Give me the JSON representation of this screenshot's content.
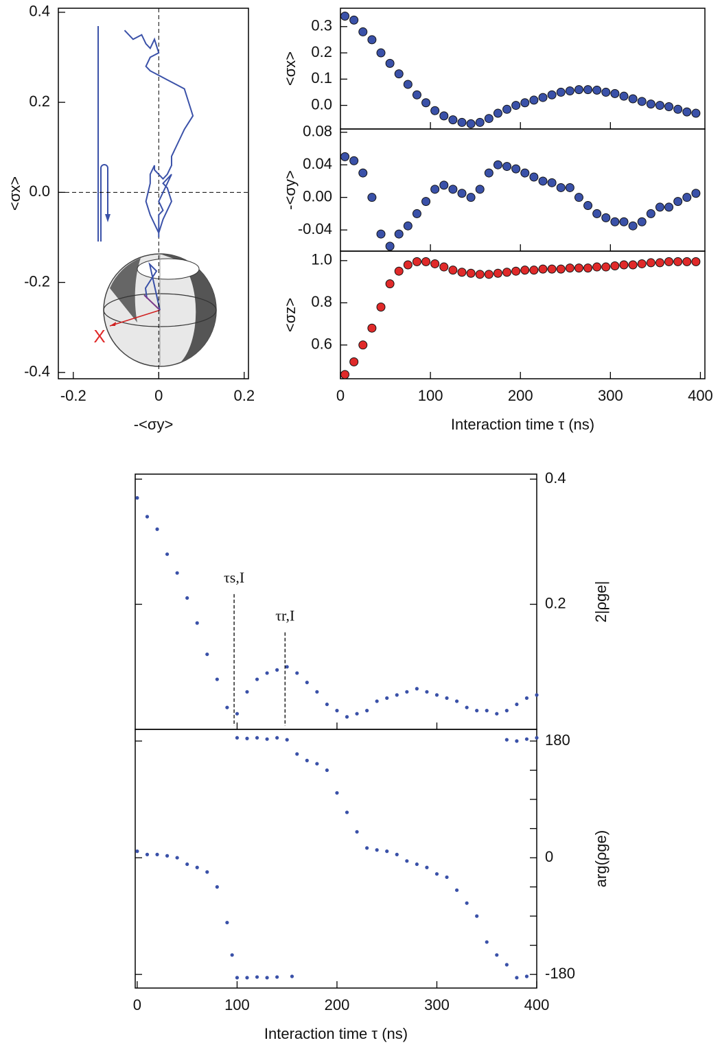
{
  "chart_data": [
    {
      "type": "line",
      "color": "#3a51a8",
      "x": [
        -0.08,
        -0.06,
        -0.04,
        -0.03,
        -0.02,
        -0.01,
        0,
        -0.02,
        -0.03,
        -0.02,
        0,
        0.02,
        0.04,
        0.06,
        0.07,
        0.08,
        0.06,
        0.05,
        0.04,
        0.03,
        0.03,
        0.02,
        0.01,
        -0.01,
        -0.01,
        -0.02,
        -0.02,
        -0.03,
        -0.02,
        -0.01,
        0,
        0.01,
        0.02,
        0.03,
        0.02,
        0.01,
        0.02,
        0.03,
        0.02,
        0.01,
        0,
        0.01,
        0,
        0
      ],
      "values": [
        0.36,
        0.34,
        0.35,
        0.33,
        0.32,
        0.34,
        0.31,
        0.3,
        0.28,
        0.27,
        0.26,
        0.25,
        0.24,
        0.23,
        0.2,
        0.17,
        0.14,
        0.12,
        0.1,
        0.08,
        0.06,
        0.04,
        0.03,
        0.05,
        0.06,
        0.04,
        0.02,
        -0.02,
        -0.05,
        -0.07,
        -0.09,
        -0.06,
        -0.04,
        -0.02,
        0.01,
        0.02,
        0.03,
        0.04,
        0.02,
        0,
        -0.02,
        -0.04,
        -0.05,
        -0.1
      ],
      "xlim": [
        -0.235,
        0.21
      ],
      "ylim": [
        -0.414,
        0.409
      ],
      "xticks": [
        -0.2,
        0,
        0.2
      ],
      "yticks": [
        -0.4,
        -0.2,
        {
          "value": 0,
          "label": "0.0"
        },
        0.2,
        0.4
      ],
      "xlabel": "-<σy>",
      "ylabel": "<σx>",
      "annotation": "X"
    },
    {
      "type": "scatter",
      "color": "#3a51a8",
      "x": [
        5,
        15,
        25,
        35,
        45,
        55,
        65,
        75,
        85,
        95,
        105,
        115,
        125,
        135,
        145,
        155,
        165,
        175,
        185,
        195,
        205,
        215,
        225,
        235,
        245,
        255,
        265,
        275,
        285,
        295,
        305,
        315,
        325,
        335,
        345,
        355,
        365,
        375,
        385,
        395
      ],
      "values": [
        0.34,
        0.325,
        0.28,
        0.25,
        0.2,
        0.16,
        0.12,
        0.08,
        0.04,
        0.01,
        -0.02,
        -0.04,
        -0.055,
        -0.065,
        -0.07,
        -0.065,
        -0.05,
        -0.03,
        -0.015,
        0,
        0.01,
        0.02,
        0.03,
        0.04,
        0.05,
        0.055,
        0.06,
        0.06,
        0.058,
        0.05,
        0.045,
        0.035,
        0.025,
        0.015,
        0.005,
        0,
        -0.005,
        -0.015,
        -0.025,
        -0.03
      ],
      "xlim": [
        0,
        405
      ],
      "ylim": [
        -0.09,
        0.37
      ],
      "xticks": [
        100,
        200,
        300
      ],
      "yticks": [
        {
          "value": 0,
          "label": "0.0"
        },
        0.1,
        0.2,
        0.3
      ],
      "ylabel": "<σx>"
    },
    {
      "type": "scatter",
      "color": "#3a51a8",
      "x": [
        5,
        15,
        25,
        35,
        45,
        55,
        65,
        75,
        85,
        95,
        105,
        115,
        125,
        135,
        145,
        155,
        165,
        175,
        185,
        195,
        205,
        215,
        225,
        235,
        245,
        255,
        265,
        275,
        285,
        295,
        305,
        315,
        325,
        335,
        345,
        355,
        365,
        375,
        385,
        395
      ],
      "values": [
        0.05,
        0.045,
        0.03,
        0,
        -0.045,
        -0.06,
        -0.045,
        -0.035,
        -0.02,
        -0.005,
        0.01,
        0.015,
        0.01,
        0.005,
        0,
        0.01,
        0.03,
        0.04,
        0.038,
        0.035,
        0.03,
        0.025,
        0.02,
        0.018,
        0.012,
        0.012,
        0,
        -0.01,
        -0.02,
        -0.025,
        -0.03,
        -0.03,
        -0.035,
        -0.03,
        -0.02,
        -0.012,
        -0.012,
        -0.005,
        0,
        0.005
      ],
      "xlim": [
        0,
        405
      ],
      "ylim": [
        -0.066,
        0.084
      ],
      "xticks": [
        100,
        200,
        300
      ],
      "yticks": [
        -0.04,
        {
          "value": 0,
          "label": "0.00"
        },
        0.04,
        0.08
      ],
      "ylabel": "-<σy>"
    },
    {
      "type": "scatter",
      "color": "#e02a2a",
      "x": [
        5,
        15,
        25,
        35,
        45,
        55,
        65,
        75,
        85,
        95,
        105,
        115,
        125,
        135,
        145,
        155,
        165,
        175,
        185,
        195,
        205,
        215,
        225,
        235,
        245,
        255,
        265,
        275,
        285,
        295,
        305,
        315,
        325,
        335,
        345,
        355,
        365,
        375,
        385,
        395
      ],
      "values": [
        0.46,
        0.52,
        0.6,
        0.68,
        0.78,
        0.89,
        0.95,
        0.98,
        0.995,
        0.995,
        0.985,
        0.97,
        0.955,
        0.945,
        0.94,
        0.935,
        0.935,
        0.94,
        0.945,
        0.95,
        0.955,
        0.955,
        0.96,
        0.96,
        0.96,
        0.965,
        0.965,
        0.965,
        0.97,
        0.97,
        0.975,
        0.98,
        0.98,
        0.985,
        0.99,
        0.99,
        0.995,
        0.995,
        0.995,
        0.995
      ],
      "xlim": [
        0,
        405
      ],
      "ylim": [
        0.44,
        1.045
      ],
      "xticks": [
        0,
        100,
        200,
        300,
        400
      ],
      "yticks": [
        0.6,
        0.8,
        {
          "value": 1,
          "label": "1.0"
        }
      ],
      "ylabel": "<σz>",
      "xlabel": "Interaction time τ (ns)"
    },
    {
      "type": "scatter",
      "color": "#3a51a8",
      "y_axis_side": "right",
      "x": [
        0,
        10,
        20,
        30,
        40,
        50,
        60,
        70,
        80,
        90,
        100,
        110,
        120,
        130,
        140,
        150,
        160,
        170,
        180,
        190,
        200,
        210,
        220,
        230,
        240,
        250,
        260,
        270,
        280,
        290,
        300,
        310,
        320,
        330,
        340,
        350,
        360,
        370,
        380,
        390,
        400
      ],
      "values": [
        0.37,
        0.34,
        0.32,
        0.28,
        0.25,
        0.21,
        0.17,
        0.12,
        0.08,
        0.035,
        0.025,
        0.06,
        0.08,
        0.09,
        0.095,
        0.1,
        0.09,
        0.075,
        0.06,
        0.04,
        0.03,
        0.02,
        0.025,
        0.03,
        0.045,
        0.05,
        0.055,
        0.06,
        0.065,
        0.06,
        0.055,
        0.05,
        0.045,
        0.035,
        0.03,
        0.03,
        0.025,
        0.03,
        0.04,
        0.05,
        0.055
      ],
      "xlim": [
        -2,
        400
      ],
      "ylim": [
        0,
        0.408
      ],
      "xticks": [
        100,
        200,
        300
      ],
      "yticks": [
        0.2,
        0.4
      ],
      "ylabel": "2|ρge|",
      "annotations": [
        {
          "text": "τs,I",
          "x": 97
        },
        {
          "text": "τr,I",
          "x": 148
        }
      ]
    },
    {
      "type": "scatter",
      "y_axis_side": "right",
      "series": [
        {
          "color": "#3a51a8",
          "x": [
            0,
            10,
            20,
            30,
            40,
            50,
            60,
            70,
            80,
            90,
            95,
            100,
            110,
            120,
            130,
            140,
            155
          ],
          "values": [
            10,
            5,
            5,
            3,
            0,
            -10,
            -15,
            -22,
            -45,
            -100,
            -150,
            -185,
            -185,
            -184,
            -185,
            -184,
            -183
          ]
        },
        {
          "color": "#3a51a8",
          "x": [
            100,
            110,
            120,
            130,
            140,
            150,
            160,
            170,
            180,
            190,
            200,
            210,
            220,
            230,
            240,
            250,
            260,
            270,
            280,
            290,
            300,
            310,
            320,
            330,
            340,
            350,
            360,
            370,
            380,
            390
          ],
          "values": [
            185,
            184,
            185,
            183,
            185,
            182,
            160,
            150,
            145,
            135,
            100,
            70,
            40,
            15,
            12,
            10,
            5,
            -5,
            -10,
            -15,
            -25,
            -30,
            -50,
            -70,
            -90,
            -130,
            -150,
            -165,
            -185,
            -183
          ]
        },
        {
          "color": "#3a51a8",
          "x": [
            370,
            380,
            390,
            400
          ],
          "values": [
            182,
            180,
            183,
            185
          ]
        }
      ],
      "xlim": [
        -2,
        400
      ],
      "ylim": [
        -201,
        198
      ],
      "xticks": [
        0,
        100,
        200,
        300,
        400
      ],
      "yticks": [
        -180,
        0,
        180
      ],
      "minor_yticks": [
        -135,
        -90,
        -45,
        45,
        90,
        135
      ],
      "ylabel": "arg(ρge)",
      "xlabel": "Interaction time τ (ns)"
    }
  ]
}
